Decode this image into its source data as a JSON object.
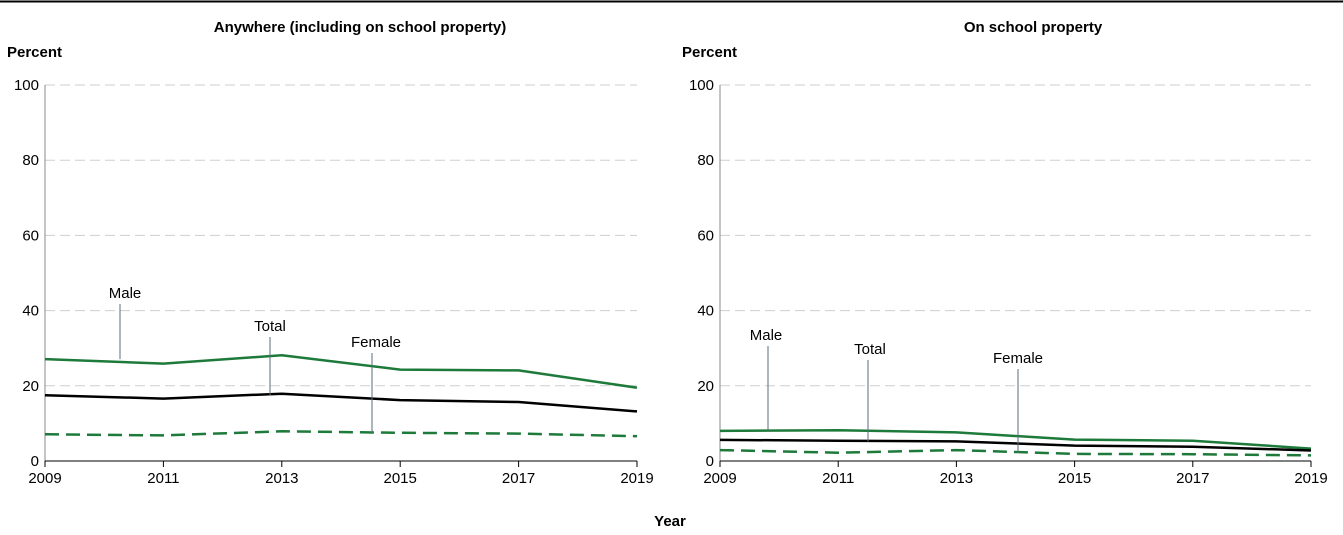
{
  "xlabel": "Year",
  "colors": {
    "male": "#1d7a3a",
    "female": "#1d7a3a",
    "total": "#000000"
  },
  "chart_data": [
    {
      "type": "line",
      "title": "Anywhere (including on school property)",
      "ylabel": "Percent",
      "xlabel": "Year",
      "ylim": [
        0,
        100
      ],
      "yticks": [
        0,
        20,
        40,
        60,
        80,
        100
      ],
      "x": [
        2009,
        2011,
        2013,
        2015,
        2017,
        2019
      ],
      "grid": true,
      "series": [
        {
          "name": "Male",
          "style": "solid-green",
          "values": [
            27.1,
            25.9,
            28.1,
            24.3,
            24.1,
            19.5
          ]
        },
        {
          "name": "Total",
          "style": "solid-black",
          "values": [
            17.5,
            16.6,
            17.9,
            16.2,
            15.7,
            13.2
          ]
        },
        {
          "name": "Female",
          "style": "dashed-green",
          "values": [
            7.1,
            6.8,
            7.9,
            7.5,
            7.3,
            6.6
          ]
        }
      ]
    },
    {
      "type": "line",
      "title": "On school property",
      "ylabel": "Percent",
      "xlabel": "Year",
      "ylim": [
        0,
        100
      ],
      "yticks": [
        0,
        20,
        40,
        60,
        80,
        100
      ],
      "x": [
        2009,
        2011,
        2013,
        2015,
        2017,
        2019
      ],
      "grid": true,
      "series": [
        {
          "name": "Male",
          "style": "solid-green",
          "values": [
            8.0,
            8.2,
            7.6,
            5.7,
            5.4,
            3.3
          ]
        },
        {
          "name": "Total",
          "style": "solid-black",
          "values": [
            5.6,
            5.4,
            5.2,
            4.1,
            3.8,
            2.8
          ]
        },
        {
          "name": "Female",
          "style": "dashed-green",
          "values": [
            2.9,
            2.2,
            2.9,
            1.9,
            1.8,
            1.5
          ]
        }
      ]
    }
  ]
}
